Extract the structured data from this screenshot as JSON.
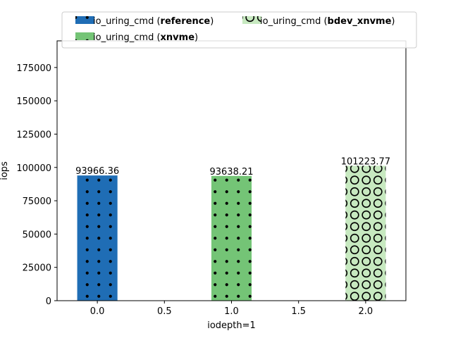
{
  "chart_data": {
    "type": "bar",
    "xlabel": "iodepth=1",
    "ylabel": "iops",
    "xlim": [
      -0.3,
      2.3
    ],
    "ylim": [
      0,
      195000
    ],
    "xticks": [
      0.0,
      0.5,
      1.0,
      1.5,
      2.0
    ],
    "xtick_labels": [
      "0.0",
      "0.5",
      "1.0",
      "1.5",
      "2.0"
    ],
    "yticks": [
      0,
      25000,
      50000,
      75000,
      100000,
      125000,
      150000,
      175000
    ],
    "ytick_labels": [
      "0",
      "25000",
      "50000",
      "75000",
      "100000",
      "125000",
      "150000",
      "175000"
    ],
    "grid": false,
    "legend_position": "top",
    "series": [
      {
        "name": "io_uring_cmd (reference)",
        "name_prefix": "io_uring_cmd (",
        "name_bold": "reference",
        "name_suffix": ")",
        "x": 0.0,
        "value": 93966.36,
        "label": "93966.36",
        "color": "#1f6db5",
        "hatch": "dots"
      },
      {
        "name": "io_uring_cmd (xnvme)",
        "name_prefix": "io_uring_cmd (",
        "name_bold": "xnvme",
        "name_suffix": ")",
        "x": 1.0,
        "value": 93638.21,
        "label": "93638.21",
        "color": "#74c476",
        "hatch": "dots"
      },
      {
        "name": "io_uring_cmd (bdev_xnvme)",
        "name_prefix": "io_uring_cmd (",
        "name_bold": "bdev_xnvme",
        "name_suffix": ")",
        "x": 2.0,
        "value": 101223.77,
        "label": "101223.77",
        "color": "#c7e9c0",
        "hatch": "circles"
      }
    ]
  }
}
